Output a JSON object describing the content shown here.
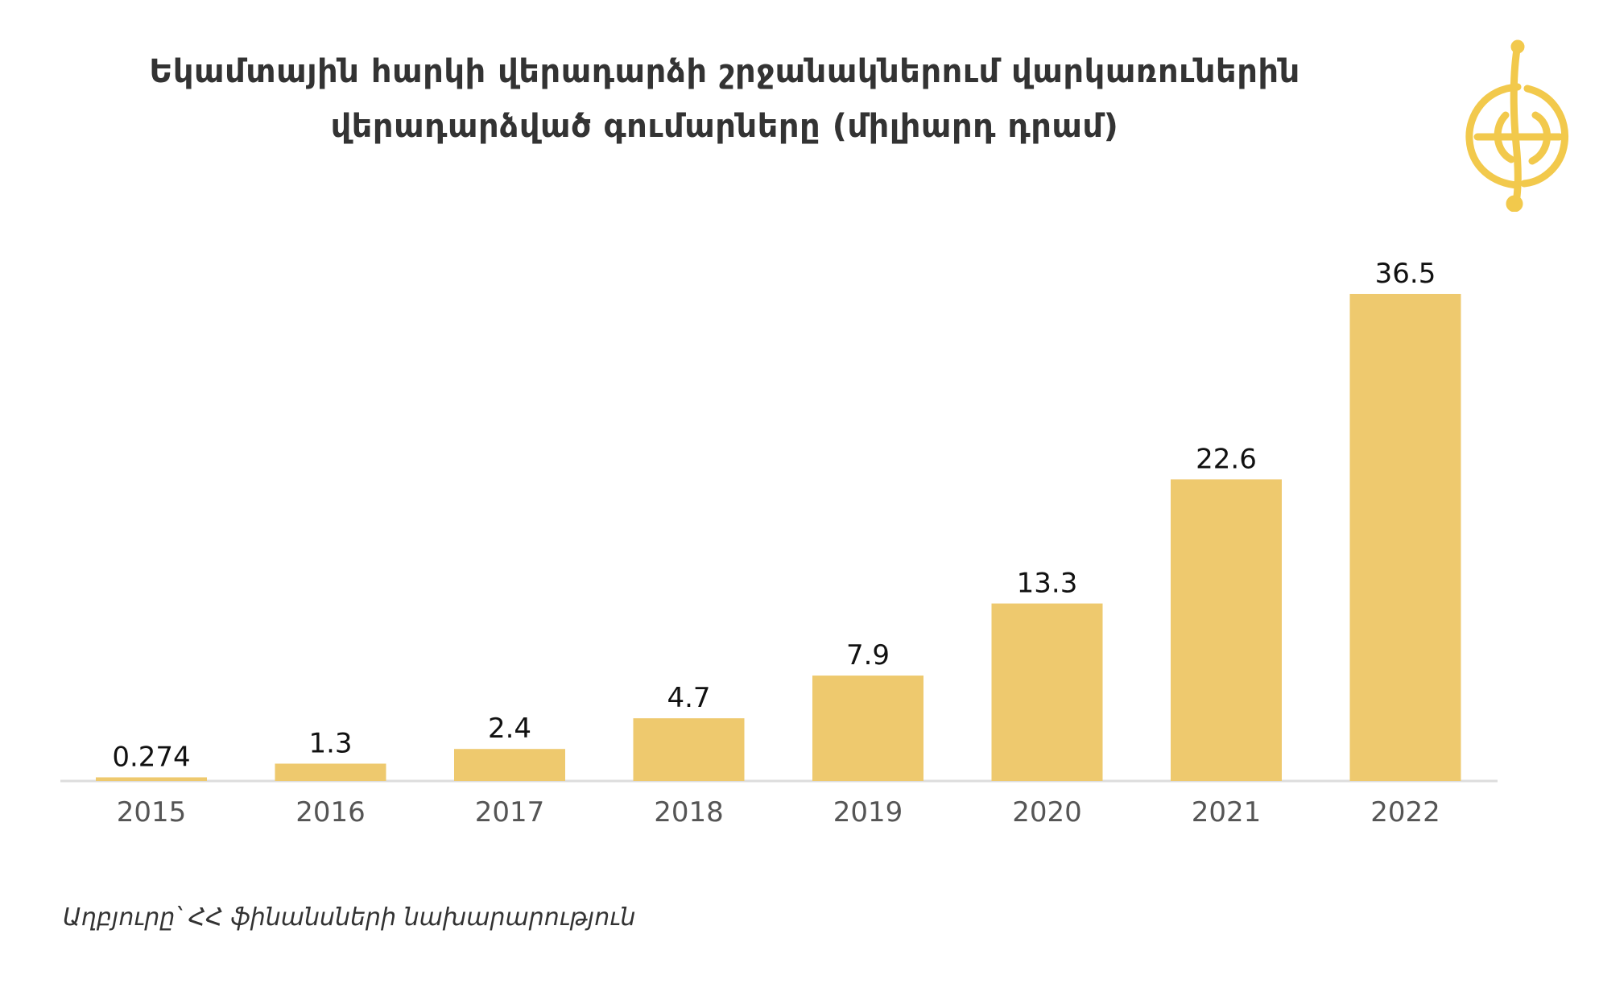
{
  "title": {
    "line1": "Եկամտային հարկի վերադարձի շրջանակներում վարկառուներին",
    "line2": "վերադարձված գումարները (միլիարդ դրամ)"
  },
  "source": "Աղբյուրը՝ ՀՀ ֆինանսների նախարարություն",
  "logo": {
    "icon": "globe-script-logo-icon",
    "color": "#f2c94c"
  },
  "colors": {
    "bar": "#eec96e",
    "axis": "#dddddd"
  },
  "chart_data": {
    "type": "bar",
    "title": "Եկամտային հարկի վերադարձի շրջանակներում վարկառուներին վերադարձված գումարները (միլիարդ դրամ)",
    "categories": [
      "2015",
      "2016",
      "2017",
      "2018",
      "2019",
      "2020",
      "2021",
      "2022"
    ],
    "values": [
      0.274,
      1.3,
      2.4,
      4.7,
      7.9,
      13.3,
      22.6,
      36.5
    ],
    "value_labels": [
      "0.274",
      "1.3",
      "2.4",
      "4.7",
      "7.9",
      "13.3",
      "22.6",
      "36.5"
    ],
    "xlabel": "",
    "ylabel": "",
    "ylim": [
      0,
      36.5
    ],
    "grid": false,
    "legend": "none"
  }
}
